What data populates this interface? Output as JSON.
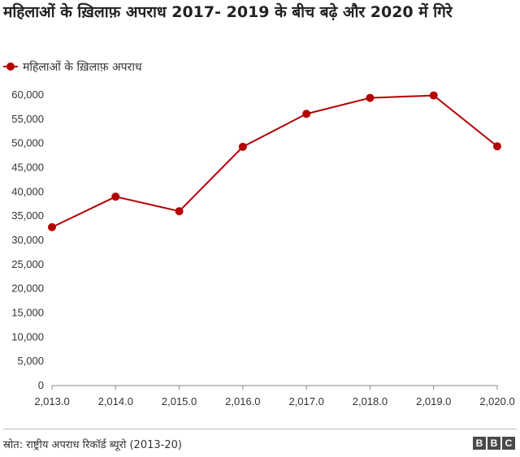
{
  "title": "महिलाओं के ख़िलाफ़ अपराध 2017- 2019 के बीच बढ़े और 2020 में गिरे",
  "legend_label": "महिलाओं के ख़िलाफ़ अपराध",
  "source": "स्रोत: राष्ट्रीय अपराध रिकॉर्ड ब्यूरो (2013-20)",
  "logo": [
    "B",
    "B",
    "C"
  ],
  "colors": {
    "series": "#b30000",
    "axis": "#888888",
    "text": "#333333"
  },
  "chart_data": {
    "type": "line",
    "x": [
      2013,
      2014,
      2015,
      2016,
      2017,
      2018,
      2019,
      2020
    ],
    "x_tick_labels": [
      "2,013.0",
      "2,014.0",
      "2,015.0",
      "2,016.0",
      "2,017.0",
      "2,018.0",
      "2,019.0",
      "2,020.0"
    ],
    "series": [
      {
        "name": "महिलाओं के ख़िलाफ़ अपराध",
        "values": [
          32700,
          39000,
          36000,
          49300,
          56100,
          59400,
          59900,
          49400
        ]
      }
    ],
    "y_ticks": [
      0,
      5000,
      10000,
      15000,
      20000,
      25000,
      30000,
      35000,
      40000,
      45000,
      50000,
      55000,
      60000
    ],
    "y_tick_labels": [
      "0",
      "5,000",
      "10,000",
      "15,000",
      "20,000",
      "25,000",
      "30,000",
      "35,000",
      "40,000",
      "45,000",
      "50,000",
      "55,000",
      "60,000"
    ],
    "ylim": [
      0,
      60000
    ],
    "grid": false,
    "legend_position": "top-left"
  }
}
